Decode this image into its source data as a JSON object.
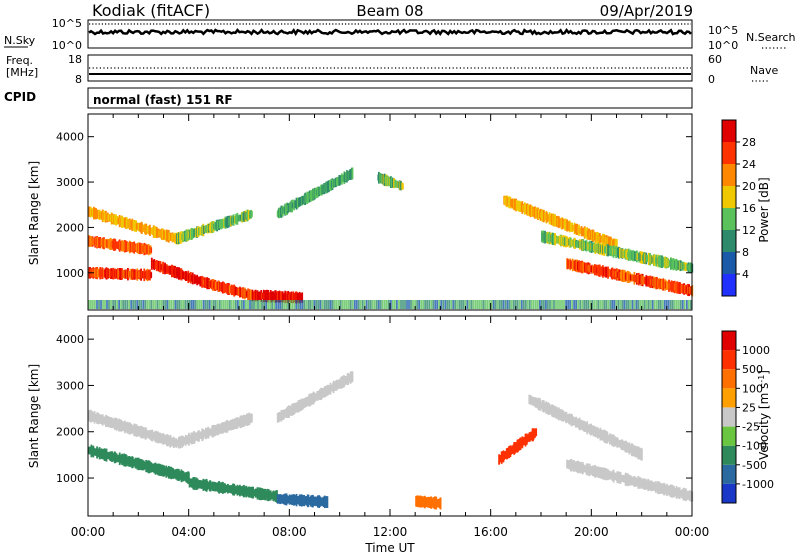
{
  "header": {
    "station": "Kodiak (fitACF)",
    "beam": "Beam 08",
    "date": "09/Apr/2019"
  },
  "noise_panel": {
    "left_label": "N.Sky",
    "right_label": "N.Search",
    "tick_top": "10^5",
    "tick_bottom": "10^0",
    "right_tick_top": "10^5",
    "right_tick_bottom": "10^0"
  },
  "freq_panel": {
    "left_label_1": "Freq.",
    "left_label_2": "[MHz]",
    "left_tick_top": "18",
    "left_tick_bottom": "8",
    "right_label": "Nave",
    "right_tick_top": "60",
    "right_tick_bottom": "0"
  },
  "cpid_panel": {
    "label": "CPID",
    "mode_text": "normal (fast) 151 RF"
  },
  "x_axis": {
    "title": "Time UT",
    "ticks": [
      "00:00",
      "04:00",
      "08:00",
      "12:00",
      "16:00",
      "20:00",
      "00:00"
    ]
  },
  "chart_data": [
    {
      "type": "heatmap",
      "ylabel": "Slant Range [km]",
      "y_ticks": [
        "1000",
        "2000",
        "3000",
        "4000"
      ],
      "ylim": [
        180,
        4500
      ],
      "xlim_hours": [
        0,
        24
      ],
      "colorbar": {
        "label": "Power [dB]",
        "ticks": [
          "4",
          "8",
          "12",
          "16",
          "20",
          "24",
          "28"
        ],
        "colors": [
          "#2030ff",
          "#1a5aa8",
          "#2d8a6a",
          "#5bc25b",
          "#f0c800",
          "#ff8800",
          "#ff3300",
          "#e00000"
        ]
      },
      "echo_bands": [
        {
          "t_start": 0.0,
          "t_end": 3.5,
          "range_start": 2350,
          "range_end": 1750,
          "power_db": 18
        },
        {
          "t_start": 3.5,
          "t_end": 6.5,
          "range_start": 1750,
          "range_end": 2300,
          "power_db": 12
        },
        {
          "t_start": 0.0,
          "t_end": 2.5,
          "range_start": 1700,
          "range_end": 1500,
          "power_db": 22
        },
        {
          "t_start": 0.0,
          "t_end": 2.5,
          "range_start": 1000,
          "range_end": 950,
          "power_db": 24
        },
        {
          "t_start": 2.5,
          "t_end": 4.5,
          "range_start": 1200,
          "range_end": 800,
          "power_db": 28
        },
        {
          "t_start": 4.5,
          "t_end": 6.5,
          "range_start": 800,
          "range_end": 500,
          "power_db": 24
        },
        {
          "t_start": 6.5,
          "t_end": 8.5,
          "range_start": 500,
          "range_end": 450,
          "power_db": 28
        },
        {
          "t_start": 7.5,
          "t_end": 10.5,
          "range_start": 2300,
          "range_end": 3200,
          "power_db": 10
        },
        {
          "t_start": 11.5,
          "t_end": 12.5,
          "range_start": 3100,
          "range_end": 2900,
          "power_db": 12
        },
        {
          "t_start": 16.5,
          "t_end": 21.0,
          "range_start": 2600,
          "range_end": 1600,
          "power_db": 18
        },
        {
          "t_start": 18.0,
          "t_end": 24.0,
          "range_start": 1800,
          "range_end": 1100,
          "power_db": 12
        },
        {
          "t_start": 19.0,
          "t_end": 24.0,
          "range_start": 1200,
          "range_end": 600,
          "power_db": 24
        }
      ]
    },
    {
      "type": "heatmap",
      "ylabel": "Slant Range [km]",
      "y_ticks": [
        "1000",
        "2000",
        "3000",
        "4000"
      ],
      "ylim": [
        180,
        4500
      ],
      "xlim_hours": [
        0,
        24
      ],
      "colorbar": {
        "label": "Velocity [m s^-1]",
        "ticks": [
          "1000",
          "500",
          "100",
          "25",
          "-25",
          "-100",
          "-500",
          "-1000"
        ],
        "colors": [
          "#1a38c8",
          "#2a6aa0",
          "#2e8a5a",
          "#6ac640",
          "#c8c8c8",
          "#ffa000",
          "#ff7000",
          "#ff3000",
          "#e00000"
        ]
      },
      "echo_bands": [
        {
          "t_start": 0.0,
          "t_end": 3.5,
          "range_start": 2350,
          "range_end": 1750,
          "velocity": 0
        },
        {
          "t_start": 3.5,
          "t_end": 6.5,
          "range_start": 1750,
          "range_end": 2300,
          "velocity": 0
        },
        {
          "t_start": 0.0,
          "t_end": 4.0,
          "range_start": 1600,
          "range_end": 1000,
          "velocity": 100
        },
        {
          "t_start": 4.0,
          "t_end": 7.5,
          "range_start": 900,
          "range_end": 600,
          "velocity": 100
        },
        {
          "t_start": 7.5,
          "t_end": 9.5,
          "range_start": 550,
          "range_end": 480,
          "velocity": 500
        },
        {
          "t_start": 7.5,
          "t_end": 10.5,
          "range_start": 2300,
          "range_end": 3200,
          "velocity": 0
        },
        {
          "t_start": 13.0,
          "t_end": 14.0,
          "range_start": 500,
          "range_end": 450,
          "velocity": -100
        },
        {
          "t_start": 16.3,
          "t_end": 17.8,
          "range_start": 1400,
          "range_end": 2000,
          "velocity": -500
        },
        {
          "t_start": 17.5,
          "t_end": 22.0,
          "range_start": 2700,
          "range_end": 1500,
          "velocity": 0
        },
        {
          "t_start": 19.0,
          "t_end": 24.0,
          "range_start": 1300,
          "range_end": 600,
          "velocity": 0
        }
      ]
    }
  ]
}
